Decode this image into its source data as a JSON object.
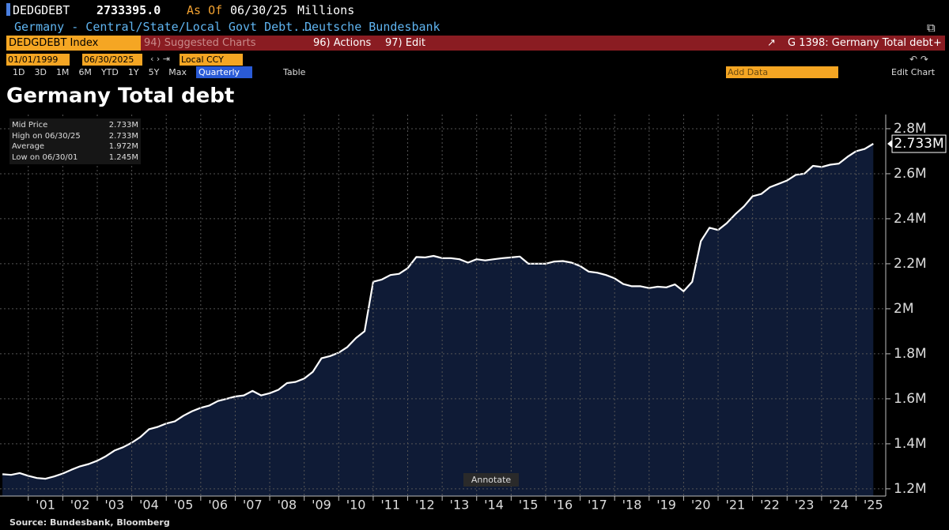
{
  "header": {
    "ticker": "DEDGDEBT",
    "value": "2733395.0",
    "as_of": "As Of",
    "date": "06/30/25",
    "units": "Millions",
    "description": "Germany - Central/State/Local Govt Debt...",
    "source_name": "Deutsche Bundesbank"
  },
  "toolbar": {
    "index": "DEDGDEBT Index",
    "suggested": "94) Suggested Charts",
    "actions": "96) Actions",
    "edit": "97) Edit",
    "chart_id": "G 1398: Germany Total debt",
    "start": "01/01/1999",
    "end": "06/30/2025",
    "currency": "Local CCY",
    "periods": [
      "1D",
      "3D",
      "1M",
      "6M",
      "YTD",
      "1Y",
      "5Y",
      "Max"
    ],
    "frequency": "Quarterly",
    "table": "Table",
    "add_data": "Add Data",
    "edit_chart": "Edit Chart"
  },
  "legend": [
    {
      "name": "Mid Price",
      "value": "2.733M"
    },
    {
      "name": "High on 06/30/25",
      "value": "2.733M"
    },
    {
      "name": "Average",
      "value": "1.972M"
    },
    {
      "name": "Low on 06/30/01",
      "value": "1.245M"
    }
  ],
  "annotate": "Annotate",
  "footer": "Source: Bundesbank, Bloomberg",
  "chart_data": {
    "type": "area",
    "title": "Germany Total debt",
    "color": "#ffffff",
    "fill": "#0f1b36",
    "grid": true,
    "x": [
      2000.25,
      2000.5,
      2000.75,
      2001,
      2001.25,
      2001.5,
      2001.75,
      2002,
      2002.25,
      2002.5,
      2002.75,
      2003,
      2003.25,
      2003.5,
      2003.75,
      2004,
      2004.25,
      2004.5,
      2004.75,
      2005,
      2005.25,
      2005.5,
      2005.75,
      2006,
      2006.25,
      2006.5,
      2006.75,
      2007,
      2007.25,
      2007.5,
      2007.75,
      2008,
      2008.25,
      2008.5,
      2008.75,
      2009,
      2009.25,
      2009.5,
      2009.75,
      2010,
      2010.25,
      2010.5,
      2010.75,
      2011,
      2011.25,
      2011.5,
      2011.75,
      2012,
      2012.25,
      2012.5,
      2012.75,
      2013,
      2013.25,
      2013.5,
      2013.75,
      2014,
      2014.25,
      2014.5,
      2014.75,
      2015,
      2015.25,
      2015.5,
      2015.75,
      2016,
      2016.25,
      2016.5,
      2016.75,
      2017,
      2017.25,
      2017.5,
      2017.75,
      2018,
      2018.25,
      2018.5,
      2018.75,
      2019,
      2019.25,
      2019.5,
      2019.75,
      2020,
      2020.25,
      2020.5,
      2020.75,
      2021,
      2021.25,
      2021.5,
      2021.75,
      2022,
      2022.25,
      2022.5,
      2022.75,
      2023,
      2023.25,
      2023.5,
      2023.75,
      2024,
      2024.25,
      2024.5,
      2024.75,
      2025,
      2025.25,
      2025.5
    ],
    "values": [
      1.265,
      1.262,
      1.27,
      1.258,
      1.248,
      1.245,
      1.255,
      1.268,
      1.285,
      1.3,
      1.31,
      1.325,
      1.345,
      1.37,
      1.385,
      1.405,
      1.43,
      1.465,
      1.475,
      1.49,
      1.5,
      1.525,
      1.545,
      1.56,
      1.57,
      1.59,
      1.6,
      1.61,
      1.615,
      1.635,
      1.615,
      1.625,
      1.64,
      1.67,
      1.675,
      1.69,
      1.72,
      1.78,
      1.79,
      1.805,
      1.83,
      1.87,
      1.9,
      2.12,
      2.13,
      2.15,
      2.155,
      2.18,
      2.23,
      2.228,
      2.235,
      2.225,
      2.225,
      2.22,
      2.205,
      2.22,
      2.215,
      2.22,
      2.225,
      2.228,
      2.232,
      2.2,
      2.2,
      2.2,
      2.21,
      2.212,
      2.205,
      2.19,
      2.165,
      2.16,
      2.15,
      2.135,
      2.11,
      2.1,
      2.1,
      2.092,
      2.098,
      2.095,
      2.108,
      2.078,
      2.12,
      2.3,
      2.36,
      2.35,
      2.38,
      2.42,
      2.455,
      2.5,
      2.51,
      2.54,
      2.555,
      2.57,
      2.595,
      2.6,
      2.635,
      2.63,
      2.64,
      2.645,
      2.675,
      2.7,
      2.71,
      2.733
    ],
    "last_value": 2.733,
    "last_label": "2.733M",
    "xlim": [
      2000.18,
      2025.86
    ],
    "xticks": [
      {
        "value": 2001,
        "label": "'01"
      },
      {
        "value": 2002,
        "label": "'02"
      },
      {
        "value": 2003,
        "label": "'03"
      },
      {
        "value": 2004,
        "label": "'04"
      },
      {
        "value": 2005,
        "label": "'05"
      },
      {
        "value": 2006,
        "label": "'06"
      },
      {
        "value": 2007,
        "label": "'07"
      },
      {
        "value": 2008,
        "label": "'08"
      },
      {
        "value": 2009,
        "label": "'09"
      },
      {
        "value": 2010,
        "label": "'10"
      },
      {
        "value": 2011,
        "label": "'11"
      },
      {
        "value": 2012,
        "label": "'12"
      },
      {
        "value": 2013,
        "label": "'13"
      },
      {
        "value": 2014,
        "label": "'14"
      },
      {
        "value": 2015,
        "label": "'15"
      },
      {
        "value": 2016,
        "label": "'16"
      },
      {
        "value": 2017,
        "label": "'17"
      },
      {
        "value": 2018,
        "label": "'18"
      },
      {
        "value": 2019,
        "label": "'19"
      },
      {
        "value": 2020,
        "label": "'20"
      },
      {
        "value": 2021,
        "label": "'21"
      },
      {
        "value": 2022,
        "label": "'22"
      },
      {
        "value": 2023,
        "label": "'23"
      },
      {
        "value": 2024,
        "label": "'24"
      },
      {
        "value": 2025,
        "label": "'25"
      }
    ],
    "ylim": [
      1.168,
      2.863
    ],
    "yticks": [
      {
        "value": 1.2,
        "label": "1.2M"
      },
      {
        "value": 1.4,
        "label": "1.4M"
      },
      {
        "value": 1.6,
        "label": "1.6M"
      },
      {
        "value": 1.8,
        "label": "1.8M"
      },
      {
        "value": 2,
        "label": "2M"
      },
      {
        "value": 2.2,
        "label": "2.2M"
      },
      {
        "value": 2.4,
        "label": "2.4M"
      },
      {
        "value": 2.6,
        "label": "2.6M"
      },
      {
        "value": 2.8,
        "label": "2.8M"
      }
    ]
  }
}
